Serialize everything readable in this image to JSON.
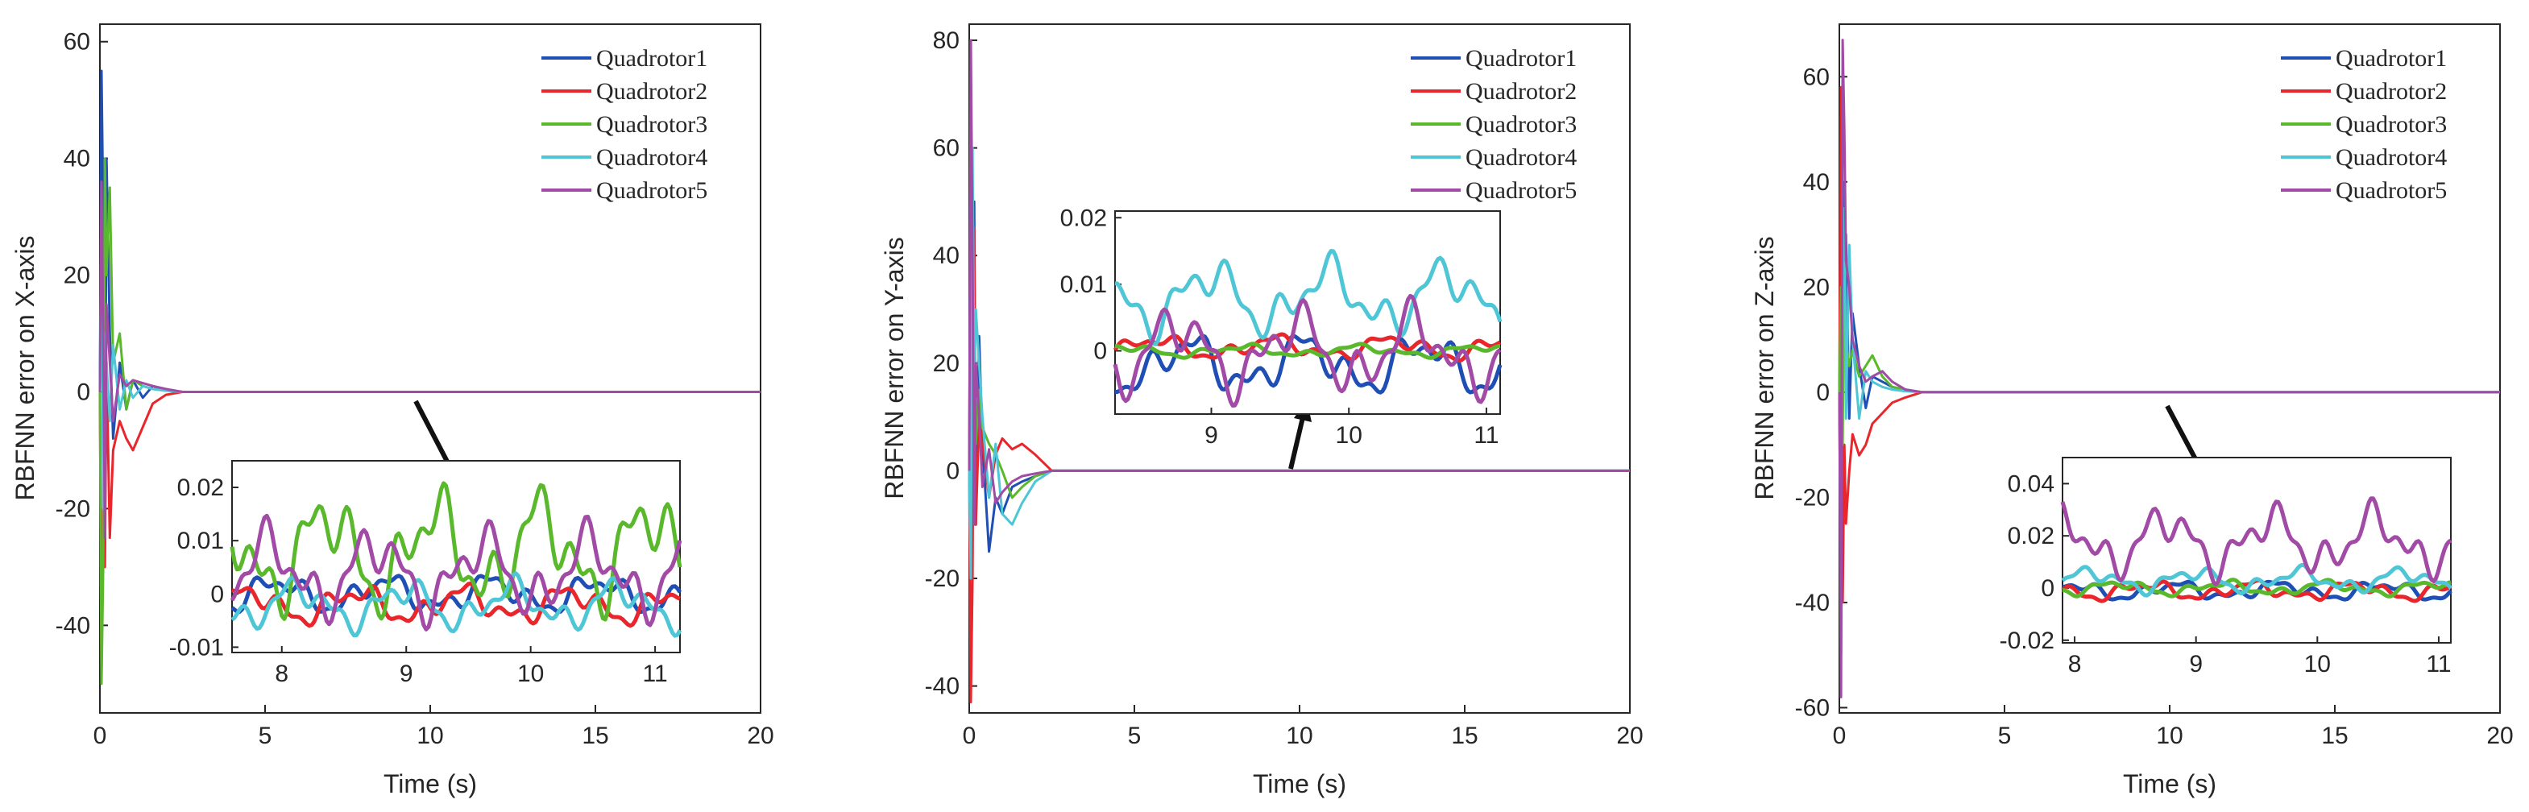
{
  "chart_data": [
    {
      "type": "line",
      "ylabel": "RBFNN error on X-axis",
      "xlabel": "Time (s)",
      "xlim": [
        0,
        20
      ],
      "ylim": [
        -55,
        63
      ],
      "xticks": [
        0,
        5,
        10,
        15,
        20
      ],
      "yticks": [
        -40,
        -20,
        0,
        20,
        40,
        60
      ],
      "legend_location": "top-right",
      "series": [
        {
          "name": "Quadrotor1",
          "color": "#1f4fb4",
          "x": [
            0,
            0.05,
            0.1,
            0.15,
            0.2,
            0.3,
            0.4,
            0.6,
            0.8,
            1.0,
            1.3,
            1.6,
            2.0,
            2.5,
            3.0,
            20
          ],
          "y": [
            0,
            55,
            30,
            -20,
            40,
            10,
            -8,
            5,
            -3,
            2,
            -1,
            1,
            0.3,
            0,
            0,
            0
          ]
        },
        {
          "name": "Quadrotor2",
          "color": "#e8262b",
          "x": [
            0,
            0.05,
            0.1,
            0.15,
            0.2,
            0.3,
            0.4,
            0.6,
            0.8,
            1.0,
            1.3,
            1.6,
            2.0,
            2.5,
            3.0,
            20
          ],
          "y": [
            0,
            -48,
            -20,
            -30,
            5,
            -25,
            -10,
            -5,
            -8,
            -10,
            -6,
            -2,
            -0.5,
            0,
            0,
            0
          ]
        },
        {
          "name": "Quadrotor3",
          "color": "#5ab82c",
          "x": [
            0,
            0.05,
            0.1,
            0.15,
            0.2,
            0.3,
            0.4,
            0.6,
            0.8,
            1.0,
            1.3,
            1.6,
            2.0,
            2.5,
            3.0,
            20
          ],
          "y": [
            0,
            -50,
            -30,
            40,
            20,
            35,
            5,
            10,
            -3,
            2,
            1,
            0.5,
            0.2,
            0,
            0,
            0
          ]
        },
        {
          "name": "Quadrotor4",
          "color": "#4ec6d6",
          "x": [
            0,
            0.05,
            0.1,
            0.15,
            0.2,
            0.3,
            0.4,
            0.6,
            0.8,
            1.0,
            1.3,
            1.6,
            2.0,
            2.5,
            3.0,
            20
          ],
          "y": [
            0,
            30,
            -20,
            10,
            5,
            -5,
            8,
            -3,
            2,
            -1,
            1,
            0.5,
            0.2,
            0,
            0,
            0
          ]
        },
        {
          "name": "Quadrotor5",
          "color": "#a14ba6",
          "x": [
            0,
            0.05,
            0.1,
            0.15,
            0.2,
            0.3,
            0.4,
            0.6,
            0.8,
            1.0,
            1.3,
            1.6,
            2.0,
            2.5,
            3.0,
            20
          ],
          "y": [
            0,
            36,
            10,
            -25,
            15,
            5,
            -5,
            3,
            1,
            2,
            1.5,
            1,
            0.5,
            0,
            0,
            0
          ]
        }
      ],
      "inset": {
        "xlim": [
          7.6,
          11.2
        ],
        "ylim": [
          -0.011,
          0.025
        ],
        "xticks": [
          8,
          9,
          10,
          11
        ],
        "yticks": [
          -0.01,
          0,
          0.01,
          0.02
        ],
        "ytick_labels": [
          "-0.01",
          "0",
          "0.01",
          "0.02"
        ],
        "amplitudes": [
          0.004,
          0.004,
          0.012,
          0.005,
          0.009
        ],
        "offsets": [
          0.0,
          -0.002,
          0.008,
          -0.002,
          0.004
        ]
      }
    },
    {
      "type": "line",
      "ylabel": "RBFNN error on Y-axis",
      "xlabel": "Time (s)",
      "xlim": [
        0,
        20
      ],
      "ylim": [
        -45,
        83
      ],
      "xticks": [
        0,
        5,
        10,
        15,
        20
      ],
      "yticks": [
        -40,
        -20,
        0,
        20,
        40,
        60,
        80
      ],
      "legend_location": "top-right",
      "series": [
        {
          "name": "Quadrotor1",
          "color": "#1f4fb4",
          "x": [
            0,
            0.05,
            0.1,
            0.15,
            0.2,
            0.3,
            0.4,
            0.6,
            0.8,
            1.0,
            1.3,
            1.6,
            2.0,
            2.5,
            3.0,
            20
          ],
          "y": [
            0,
            70,
            20,
            50,
            -10,
            25,
            5,
            -15,
            -5,
            -8,
            -3,
            -2,
            -1,
            0,
            0,
            0
          ]
        },
        {
          "name": "Quadrotor2",
          "color": "#e8262b",
          "x": [
            0,
            0.05,
            0.1,
            0.15,
            0.2,
            0.3,
            0.4,
            0.6,
            0.8,
            1.0,
            1.3,
            1.6,
            2.0,
            2.5,
            3.0,
            20
          ],
          "y": [
            0,
            -43,
            -20,
            45,
            -10,
            10,
            5,
            -5,
            3,
            6,
            4,
            5,
            3,
            0,
            0,
            0
          ]
        },
        {
          "name": "Quadrotor3",
          "color": "#5ab82c",
          "x": [
            0,
            0.05,
            0.1,
            0.15,
            0.2,
            0.3,
            0.4,
            0.6,
            0.8,
            1.0,
            1.3,
            1.6,
            2.0,
            2.5,
            3.0,
            20
          ],
          "y": [
            0,
            48,
            10,
            30,
            5,
            15,
            8,
            5,
            3,
            0,
            -5,
            -3,
            -1,
            0,
            0,
            0
          ]
        },
        {
          "name": "Quadrotor4",
          "color": "#4ec6d6",
          "x": [
            0,
            0.05,
            0.1,
            0.15,
            0.2,
            0.3,
            0.4,
            0.6,
            0.8,
            1.0,
            1.3,
            1.6,
            2.0,
            2.5,
            3.0,
            20
          ],
          "y": [
            0,
            -20,
            60,
            15,
            30,
            20,
            10,
            -5,
            5,
            -8,
            -10,
            -6,
            -2,
            0,
            0,
            0
          ]
        },
        {
          "name": "Quadrotor5",
          "color": "#a14ba6",
          "x": [
            0,
            0.05,
            0.1,
            0.15,
            0.2,
            0.3,
            0.4,
            0.6,
            0.8,
            1.0,
            1.3,
            1.6,
            2.0,
            2.5,
            3.0,
            20
          ],
          "y": [
            0,
            80,
            40,
            -10,
            20,
            10,
            -3,
            4,
            -6,
            -4,
            -2,
            -1,
            -0.5,
            0,
            0,
            0
          ]
        }
      ],
      "inset": {
        "xlim": [
          8.3,
          11.1
        ],
        "ylim": [
          -0.0095,
          0.021
        ],
        "xticks": [
          9,
          10,
          11
        ],
        "yticks": [
          -0.01,
          0,
          0.01,
          0.02
        ],
        "ytick_labels": [
          "-0.01",
          "0",
          "0.01",
          "0.02"
        ],
        "amplitudes": [
          0.005,
          0.002,
          0.001,
          0.006,
          0.007
        ],
        "offsets": [
          -0.002,
          0.0005,
          0.0,
          0.008,
          0.0
        ]
      }
    },
    {
      "type": "line",
      "ylabel": "RBFNN error on Z-axis",
      "xlabel": "Time (s)",
      "xlim": [
        0,
        20
      ],
      "ylim": [
        -61,
        70
      ],
      "xticks": [
        0,
        5,
        10,
        15,
        20
      ],
      "yticks": [
        -60,
        -40,
        -20,
        0,
        20,
        40,
        60
      ],
      "legend_location": "top-right",
      "series": [
        {
          "name": "Quadrotor1",
          "color": "#1f4fb4",
          "x": [
            0,
            0.05,
            0.1,
            0.15,
            0.2,
            0.3,
            0.4,
            0.6,
            0.8,
            1.0,
            1.3,
            1.6,
            2.0,
            2.5,
            3.0,
            20
          ],
          "y": [
            0,
            -50,
            40,
            10,
            30,
            -5,
            15,
            5,
            -3,
            3,
            2,
            1,
            0.5,
            0,
            0,
            0
          ]
        },
        {
          "name": "Quadrotor2",
          "color": "#e8262b",
          "x": [
            0,
            0.05,
            0.1,
            0.15,
            0.2,
            0.3,
            0.4,
            0.6,
            0.8,
            1.0,
            1.3,
            1.6,
            2.0,
            2.5,
            3.0,
            20
          ],
          "y": [
            0,
            58,
            -40,
            -10,
            -25,
            -15,
            -8,
            -12,
            -10,
            -6,
            -4,
            -2,
            -1,
            0,
            0,
            0
          ]
        },
        {
          "name": "Quadrotor3",
          "color": "#5ab82c",
          "x": [
            0,
            0.05,
            0.1,
            0.15,
            0.2,
            0.3,
            0.4,
            0.6,
            0.8,
            1.0,
            1.3,
            1.6,
            2.0,
            2.5,
            3.0,
            20
          ],
          "y": [
            0,
            20,
            -10,
            30,
            10,
            5,
            8,
            3,
            5,
            7,
            3,
            1,
            0.5,
            0,
            0,
            0
          ]
        },
        {
          "name": "Quadrotor4",
          "color": "#4ec6d6",
          "x": [
            0,
            0.05,
            0.1,
            0.15,
            0.2,
            0.3,
            0.4,
            0.6,
            0.8,
            1.0,
            1.3,
            1.6,
            2.0,
            2.5,
            3.0,
            20
          ],
          "y": [
            0,
            -30,
            20,
            35,
            -5,
            28,
            10,
            -5,
            4,
            2,
            1,
            0.5,
            0.2,
            0,
            0,
            0
          ]
        },
        {
          "name": "Quadrotor5",
          "color": "#a14ba6",
          "x": [
            0,
            0.05,
            0.1,
            0.15,
            0.2,
            0.3,
            0.4,
            0.6,
            0.8,
            1.0,
            1.3,
            1.6,
            2.0,
            2.5,
            3.0,
            20
          ],
          "y": [
            0,
            -58,
            67,
            50,
            25,
            20,
            10,
            5,
            2,
            3,
            4,
            2,
            0.5,
            0,
            0,
            0
          ]
        }
      ],
      "inset": {
        "xlim": [
          7.9,
          11.1
        ],
        "ylim": [
          -0.021,
          0.05
        ],
        "xticks": [
          8,
          9,
          10,
          11
        ],
        "yticks": [
          -0.02,
          0,
          0.02,
          0.04
        ],
        "ytick_labels": [
          "-0.02",
          "0",
          "0.02",
          "0.04"
        ],
        "amplitudes": [
          0.004,
          0.004,
          0.003,
          0.005,
          0.014
        ],
        "offsets": [
          -0.001,
          -0.001,
          0.0,
          0.003,
          0.018
        ]
      }
    }
  ]
}
